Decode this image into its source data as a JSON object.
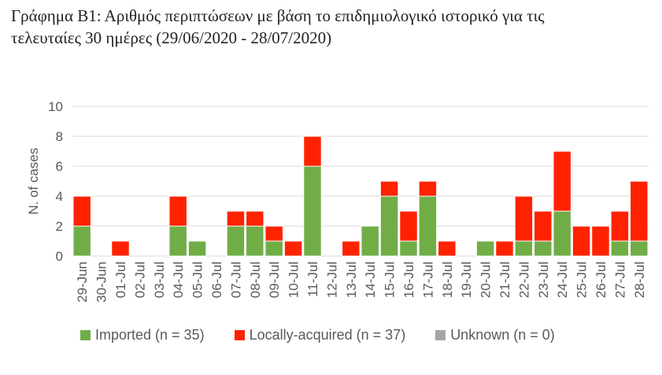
{
  "caption": {
    "line1": "Γράφημα Β1: Αριθμός περιπτώσεων με βάση το επιδημιολογικό ιστορικό για τις",
    "line2": "τελευταίες 30 ημέρες (29/06/2020 - 28/07/2020)"
  },
  "colors": {
    "imported": "#70AD47",
    "local": "#FF2200",
    "unknown": "#A5A5A5",
    "grid": "#D9D9D9",
    "bar_separator": "#FFFFFF"
  },
  "chart_data": {
    "type": "bar",
    "stacked": true,
    "categories": [
      "29-Jun",
      "30-Jun",
      "01-Jul",
      "02-Jul",
      "03-Jul",
      "04-Jul",
      "05-Jul",
      "06-Jul",
      "07-Jul",
      "08-Jul",
      "09-Jul",
      "10-Jul",
      "11-Jul",
      "12-Jul",
      "13-Jul",
      "14-Jul",
      "15-Jul",
      "16-Jul",
      "17-Jul",
      "18-Jul",
      "19-Jul",
      "20-Jul",
      "21-Jul",
      "22-Jul",
      "23-Jul",
      "24-Jul",
      "25-Jul",
      "26-Jul",
      "27-Jul",
      "28-Jul"
    ],
    "series": [
      {
        "name": "Imported (n = 35)",
        "values": [
          2,
          0,
          0,
          0,
          0,
          2,
          1,
          0,
          2,
          2,
          1,
          0,
          6,
          0,
          0,
          2,
          4,
          1,
          4,
          0,
          0,
          1,
          0,
          1,
          1,
          3,
          0,
          0,
          1,
          1
        ]
      },
      {
        "name": "Locally-acquired (n = 37)",
        "values": [
          2,
          0,
          1,
          0,
          0,
          2,
          0,
          0,
          1,
          1,
          1,
          1,
          2,
          0,
          1,
          0,
          1,
          2,
          1,
          1,
          0,
          0,
          1,
          3,
          2,
          4,
          2,
          2,
          2,
          4
        ]
      },
      {
        "name": "Unknown (n = 0)",
        "values": [
          0,
          0,
          0,
          0,
          0,
          0,
          0,
          0,
          0,
          0,
          0,
          0,
          0,
          0,
          0,
          0,
          0,
          0,
          0,
          0,
          0,
          0,
          0,
          0,
          0,
          0,
          0,
          0,
          0,
          0
        ]
      }
    ],
    "yticks": [
      0,
      2,
      4,
      6,
      8,
      10
    ],
    "ylim": [
      0,
      10
    ],
    "ylabel": "N. of cases",
    "xlabel": "",
    "grid": "horizontal",
    "legend_position": "bottom"
  }
}
